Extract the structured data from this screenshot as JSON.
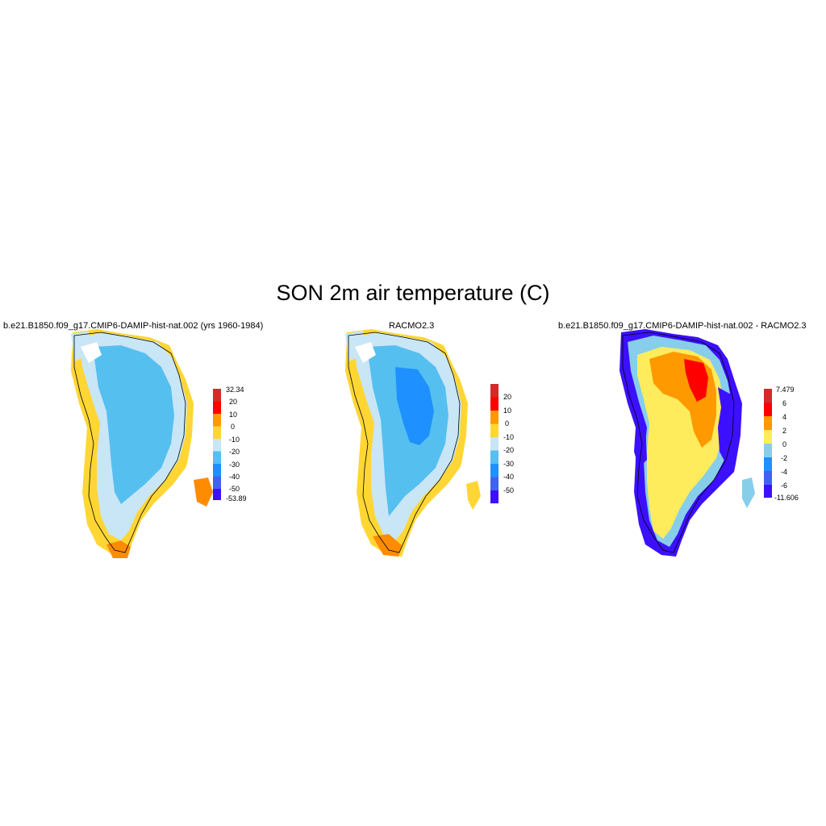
{
  "title": "SON 2m air temperature (C)",
  "panels": [
    {
      "title": "b.e21.B1850.f09_g17.CMIP6-DAMIP-hist-nat.002 (yrs 1960-1984)",
      "colorbar": {
        "labels": [
          "32.34",
          "20",
          "10",
          "0",
          "-10",
          "-20",
          "-30",
          "-40",
          "-50",
          "-53.89"
        ],
        "colors": [
          "#d42a2a",
          "#ff0000",
          "#ff9900",
          "#ffd633",
          "#c8e6f5",
          "#55bff0",
          "#1e90ff",
          "#4162f0",
          "#3c10ff"
        ]
      }
    },
    {
      "title": "RACMO2.3",
      "colorbar": {
        "labels": [
          "20",
          "10",
          "0",
          "-10",
          "-20",
          "-30",
          "-40",
          "-50"
        ],
        "colors": [
          "#d42a2a",
          "#ff0000",
          "#ff9900",
          "#ffd633",
          "#c8e6f5",
          "#55bff0",
          "#1e90ff",
          "#4162f0",
          "#3c10ff"
        ]
      }
    },
    {
      "title": "b.e21.B1850.f09_g17.CMIP6-DAMIP-hist-nat.002 - RACMO2.3",
      "colorbar": {
        "labels": [
          "7.479",
          "6",
          "4",
          "2",
          "0",
          "-2",
          "-4",
          "-6",
          "-11.606"
        ],
        "colors": [
          "#d42a2a",
          "#ff0000",
          "#ff9900",
          "#ffec5c",
          "#87ceeb",
          "#1e90ff",
          "#4162f0",
          "#3c10ff"
        ]
      }
    }
  ]
}
